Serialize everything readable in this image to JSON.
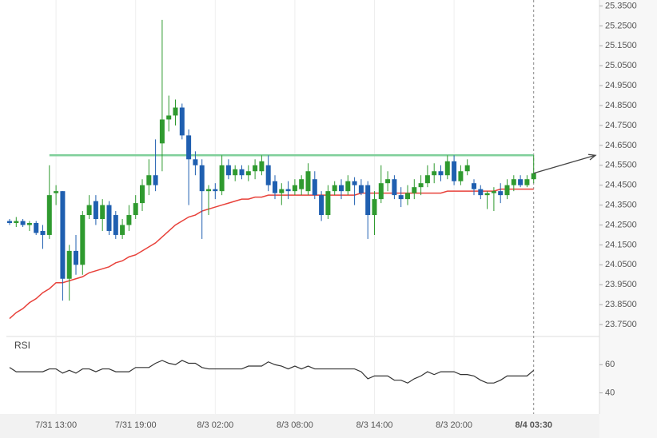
{
  "chart_data": [
    {
      "type": "candlestick",
      "categories": [
        null,
        null,
        null,
        null,
        null,
        null,
        null,
        "7/31 13:00",
        null,
        null,
        null,
        null,
        null,
        null,
        null,
        null,
        null,
        null,
        null,
        "7/31 19:00",
        null,
        null,
        null,
        null,
        null,
        null,
        null,
        null,
        null,
        null,
        null,
        "8/3 02:00",
        null,
        null,
        null,
        null,
        null,
        null,
        null,
        null,
        null,
        null,
        null,
        "8/3 08:00",
        null,
        null,
        null,
        null,
        null,
        null,
        null,
        null,
        null,
        null,
        null,
        "8/3 14:00",
        null,
        null,
        null,
        null,
        null,
        null,
        null,
        null,
        null,
        null,
        null,
        "8/3 20:00",
        null,
        null,
        null,
        null,
        null,
        null,
        null,
        null,
        null,
        null,
        null,
        "8/4 03:30"
      ],
      "open": [
        24.27,
        24.26,
        24.27,
        24.25,
        24.26,
        24.22,
        24.2,
        24.41,
        24.42,
        23.98,
        24.12,
        24.05,
        24.3,
        24.37,
        24.28,
        24.35,
        24.3,
        24.2,
        24.25,
        24.3,
        24.36,
        24.45,
        24.5,
        24.66,
        24.78,
        24.8,
        24.84,
        24.7,
        24.58,
        24.55,
        24.42,
        24.43,
        24.42,
        24.55,
        24.5,
        24.53,
        24.5,
        24.52,
        24.52,
        24.55,
        24.47,
        24.41,
        24.43,
        24.42,
        24.43,
        24.42,
        24.48,
        24.4,
        24.3,
        24.42,
        24.45,
        24.42,
        24.47,
        24.45,
        24.45,
        24.3,
        24.38,
        24.46,
        24.48,
        24.4,
        24.38,
        24.41,
        24.44,
        24.46,
        24.5,
        24.52,
        24.5,
        24.57,
        24.47,
        24.52,
        24.46,
        24.43,
        24.4,
        24.41,
        24.42,
        24.4,
        24.45,
        24.48,
        24.45,
        24.48
      ],
      "high": [
        24.28,
        24.29,
        24.28,
        24.27,
        24.27,
        24.25,
        24.55,
        24.45,
        24.42,
        24.15,
        24.2,
        24.32,
        24.4,
        24.4,
        24.38,
        24.37,
        24.32,
        24.28,
        24.35,
        24.4,
        24.48,
        24.58,
        24.68,
        25.28,
        24.9,
        24.88,
        24.86,
        24.73,
        24.62,
        24.58,
        24.45,
        24.46,
        24.6,
        24.58,
        24.55,
        24.55,
        24.55,
        24.58,
        24.6,
        24.6,
        24.5,
        24.46,
        24.47,
        24.48,
        24.5,
        24.56,
        24.52,
        24.42,
        24.45,
        24.47,
        24.48,
        24.5,
        24.49,
        24.48,
        24.47,
        24.42,
        24.55,
        24.52,
        24.5,
        24.44,
        24.45,
        24.48,
        24.5,
        24.55,
        24.56,
        24.55,
        24.6,
        24.6,
        24.55,
        24.58,
        24.48,
        24.45,
        24.42,
        24.44,
        24.46,
        24.48,
        24.5,
        24.5,
        24.5,
        24.6
      ],
      "low": [
        24.25,
        24.24,
        24.24,
        24.22,
        24.2,
        24.13,
        24.18,
        24.35,
        23.87,
        23.87,
        24.0,
        24.0,
        24.28,
        24.25,
        24.22,
        24.2,
        24.18,
        24.18,
        24.22,
        24.28,
        24.32,
        24.4,
        24.42,
        24.52,
        24.72,
        24.75,
        24.68,
        24.35,
        24.5,
        24.18,
        24.3,
        24.38,
        24.4,
        24.48,
        24.47,
        24.48,
        24.47,
        24.48,
        24.5,
        24.42,
        24.38,
        24.35,
        24.38,
        24.4,
        24.4,
        24.4,
        24.38,
        24.27,
        24.28,
        24.4,
        24.38,
        24.4,
        24.35,
        24.4,
        24.18,
        24.2,
        24.36,
        24.42,
        24.38,
        24.34,
        24.35,
        24.38,
        24.4,
        24.44,
        24.46,
        24.47,
        24.48,
        24.45,
        24.45,
        24.5,
        24.4,
        24.38,
        24.33,
        24.32,
        24.36,
        24.38,
        24.42,
        24.44,
        24.44,
        24.46
      ],
      "close": [
        24.26,
        24.27,
        24.25,
        24.26,
        24.21,
        24.2,
        24.4,
        24.42,
        23.98,
        24.12,
        24.05,
        24.3,
        24.35,
        24.28,
        24.35,
        24.22,
        24.2,
        24.25,
        24.3,
        24.36,
        24.45,
        24.5,
        24.45,
        24.78,
        24.8,
        24.84,
        24.7,
        24.58,
        24.55,
        24.42,
        24.43,
        24.42,
        24.55,
        24.5,
        24.53,
        24.5,
        24.52,
        24.55,
        24.57,
        24.45,
        24.41,
        24.43,
        24.42,
        24.45,
        24.48,
        24.52,
        24.4,
        24.3,
        24.42,
        24.45,
        24.42,
        24.47,
        24.45,
        24.41,
        24.3,
        24.38,
        24.46,
        24.48,
        24.4,
        24.38,
        24.41,
        24.44,
        24.46,
        24.5,
        24.52,
        24.5,
        24.57,
        24.47,
        24.52,
        24.55,
        24.43,
        24.4,
        24.41,
        24.42,
        24.4,
        24.45,
        24.48,
        24.45,
        24.48,
        24.51
      ],
      "up_color": "#2f9a2f",
      "down_color": "#1f5fb0",
      "ma": {
        "color": "#e8413a",
        "values": [
          23.78,
          23.81,
          23.83,
          23.86,
          23.88,
          23.91,
          23.93,
          23.96,
          23.96,
          23.97,
          23.98,
          23.99,
          24.01,
          24.02,
          24.03,
          24.04,
          24.06,
          24.07,
          24.09,
          24.1,
          24.12,
          24.14,
          24.16,
          24.19,
          24.22,
          24.25,
          24.27,
          24.29,
          24.3,
          24.32,
          24.33,
          24.34,
          24.35,
          24.36,
          24.37,
          24.38,
          24.38,
          24.39,
          24.39,
          24.4,
          24.4,
          24.4,
          24.4,
          24.4,
          24.4,
          24.4,
          24.4,
          24.4,
          24.4,
          24.4,
          24.4,
          24.4,
          24.4,
          24.41,
          24.41,
          24.41,
          24.41,
          24.41,
          24.41,
          24.41,
          24.41,
          24.41,
          24.41,
          24.41,
          24.41,
          24.41,
          24.42,
          24.42,
          24.42,
          24.42,
          24.42,
          24.42,
          24.42,
          24.42,
          24.43,
          24.43,
          24.43,
          24.43,
          24.43,
          24.43
        ]
      },
      "resistance": {
        "value": 24.6,
        "color": "#7fcf9a"
      },
      "ylim": [
        23.69,
        25.38
      ],
      "yticks": [
        {
          "value": 23.75,
          "label": "23.7500"
        },
        {
          "value": 23.85,
          "label": "23.8500"
        },
        {
          "value": 23.95,
          "label": "23.9500"
        },
        {
          "value": 24.05,
          "label": "24.0500"
        },
        {
          "value": 24.15,
          "label": "24.1500"
        },
        {
          "value": 24.25,
          "label": "24.2500"
        },
        {
          "value": 24.35,
          "label": "24.3500"
        },
        {
          "value": 24.45,
          "label": "24.4500"
        },
        {
          "value": 24.55,
          "label": "24.5500"
        },
        {
          "value": 24.65,
          "label": "24.6500"
        },
        {
          "value": 24.75,
          "label": "24.7500"
        },
        {
          "value": 24.85,
          "label": "24.8500"
        },
        {
          "value": 24.95,
          "label": "24.9500"
        },
        {
          "value": 25.05,
          "label": "25.0500"
        },
        {
          "value": 25.15,
          "label": "25.1500"
        },
        {
          "value": 25.25,
          "label": "25.2500"
        },
        {
          "value": 25.35,
          "label": "25.3500"
        }
      ]
    },
    {
      "type": "line",
      "title": "RSI",
      "color": "#333333",
      "values": [
        58,
        55,
        55,
        55,
        55,
        55,
        57,
        57,
        54,
        56,
        54,
        57,
        57,
        55,
        57,
        57,
        55,
        55,
        55,
        58,
        58,
        58,
        61,
        63,
        61,
        60,
        63,
        61,
        61,
        58,
        57,
        57,
        57,
        57,
        57,
        57,
        59,
        59,
        59,
        62,
        60,
        59,
        57,
        59,
        57,
        59,
        57,
        57,
        57,
        57,
        57,
        57,
        57,
        55,
        50,
        52,
        52,
        52,
        49,
        49,
        47,
        50,
        52,
        55,
        53,
        55,
        55,
        55,
        53,
        53,
        52,
        49,
        47,
        47,
        49,
        52,
        52,
        52,
        52,
        56
      ],
      "ylim": [
        25,
        80
      ],
      "yticks": [
        40,
        60
      ]
    }
  ]
}
